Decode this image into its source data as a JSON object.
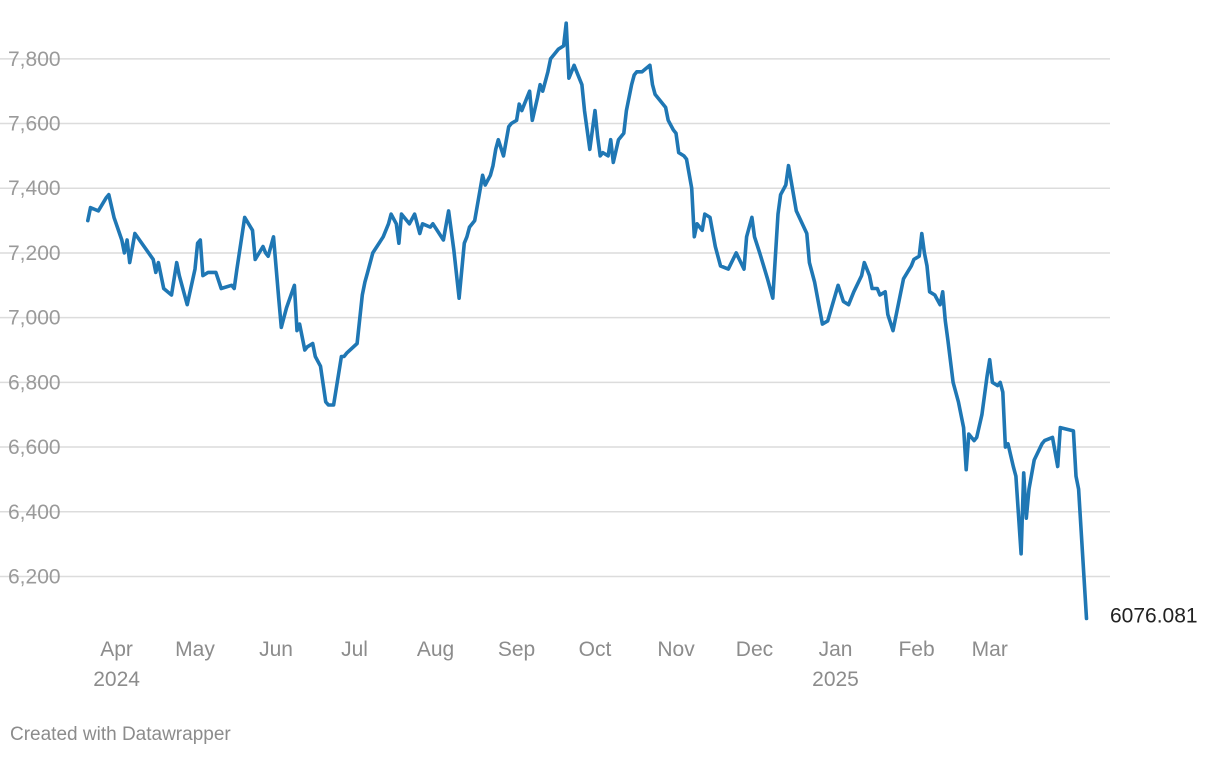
{
  "chart_data": {
    "type": "line",
    "title": "",
    "xlabel": "",
    "ylabel": "",
    "ylim": [
      6050,
      7920
    ],
    "yticks": [
      6200,
      6400,
      6600,
      6800,
      7000,
      7200,
      7400,
      7600,
      7800
    ],
    "ytick_labels": [
      "6,200",
      "6,400",
      "6,600",
      "6,800",
      "7,000",
      "7,200",
      "7,400",
      "7,600",
      "7,800"
    ],
    "xlim": [
      "2024-03-18",
      "2025-04-16"
    ],
    "xticks": [
      {
        "date": "2024-04-01",
        "label": "Apr",
        "sublabel": "2024"
      },
      {
        "date": "2024-05-01",
        "label": "May",
        "sublabel": ""
      },
      {
        "date": "2024-06-01",
        "label": "Jun",
        "sublabel": ""
      },
      {
        "date": "2024-07-01",
        "label": "Jul",
        "sublabel": ""
      },
      {
        "date": "2024-08-01",
        "label": "Aug",
        "sublabel": ""
      },
      {
        "date": "2024-09-01",
        "label": "Sep",
        "sublabel": ""
      },
      {
        "date": "2024-10-01",
        "label": "Oct",
        "sublabel": ""
      },
      {
        "date": "2024-11-01",
        "label": "Nov",
        "sublabel": ""
      },
      {
        "date": "2024-12-01",
        "label": "Dec",
        "sublabel": ""
      },
      {
        "date": "2025-01-01",
        "label": "Jan",
        "sublabel": "2025"
      },
      {
        "date": "2025-02-01",
        "label": "Feb",
        "sublabel": ""
      },
      {
        "date": "2025-03-01",
        "label": "Mar",
        "sublabel": ""
      }
    ],
    "grid": true,
    "line_color": "#1f77b4",
    "end_label": "6076.081",
    "series": [
      {
        "x": [
          "2024-03-21",
          "2024-03-22",
          "2024-03-25",
          "2024-03-28",
          "2024-03-29",
          "2024-03-31",
          "2024-04-03",
          "2024-04-04",
          "2024-04-05",
          "2024-04-06",
          "2024-04-08",
          "2024-04-15",
          "2024-04-16",
          "2024-04-17",
          "2024-04-19",
          "2024-04-22",
          "2024-04-24",
          "2024-04-25",
          "2024-04-28",
          "2024-05-01",
          "2024-05-02",
          "2024-05-03",
          "2024-05-04",
          "2024-05-06",
          "2024-05-09",
          "2024-05-11",
          "2024-05-15",
          "2024-05-16",
          "2024-05-17",
          "2024-05-20",
          "2024-05-23",
          "2024-05-24",
          "2024-05-27",
          "2024-05-28",
          "2024-05-29",
          "2024-05-31",
          "2024-06-02",
          "2024-06-03",
          "2024-06-04",
          "2024-06-05",
          "2024-06-08",
          "2024-06-09",
          "2024-06-10",
          "2024-06-12",
          "2024-06-13",
          "2024-06-15",
          "2024-06-16",
          "2024-06-18",
          "2024-06-20",
          "2024-06-21",
          "2024-06-23",
          "2024-06-26",
          "2024-06-27",
          "2024-06-28",
          "2024-07-02",
          "2024-07-04",
          "2024-07-05",
          "2024-07-06",
          "2024-07-08",
          "2024-07-12",
          "2024-07-14",
          "2024-07-15",
          "2024-07-17",
          "2024-07-18",
          "2024-07-19",
          "2024-07-22",
          "2024-07-24",
          "2024-07-26",
          "2024-07-27",
          "2024-07-30",
          "2024-07-31",
          "2024-08-04",
          "2024-08-06",
          "2024-08-08",
          "2024-08-10",
          "2024-08-12",
          "2024-08-13",
          "2024-08-14",
          "2024-08-16",
          "2024-08-19",
          "2024-08-20",
          "2024-08-22",
          "2024-08-23",
          "2024-08-24",
          "2024-08-25",
          "2024-08-27",
          "2024-08-29",
          "2024-08-30",
          "2024-09-01",
          "2024-09-02",
          "2024-09-03",
          "2024-09-05",
          "2024-09-06",
          "2024-09-07",
          "2024-09-09",
          "2024-09-10",
          "2024-09-11",
          "2024-09-13",
          "2024-09-14",
          "2024-09-16",
          "2024-09-17",
          "2024-09-19",
          "2024-09-20",
          "2024-09-21",
          "2024-09-22",
          "2024-09-23",
          "2024-09-24",
          "2024-09-26",
          "2024-09-27",
          "2024-09-29",
          "2024-10-01",
          "2024-10-02",
          "2024-10-03",
          "2024-10-04",
          "2024-10-06",
          "2024-10-07",
          "2024-10-08",
          "2024-10-10",
          "2024-10-12",
          "2024-10-13",
          "2024-10-15",
          "2024-10-16",
          "2024-10-17",
          "2024-10-19",
          "2024-10-22",
          "2024-10-23",
          "2024-10-24",
          "2024-10-28",
          "2024-10-29",
          "2024-10-31",
          "2024-11-01",
          "2024-11-02",
          "2024-11-04",
          "2024-11-05",
          "2024-11-07",
          "2024-11-08",
          "2024-11-09",
          "2024-11-11",
          "2024-11-12",
          "2024-11-14",
          "2024-11-16",
          "2024-11-18",
          "2024-11-21",
          "2024-11-24",
          "2024-11-27",
          "2024-11-28",
          "2024-11-30",
          "2024-12-01",
          "2024-12-03",
          "2024-12-06",
          "2024-12-08",
          "2024-12-10",
          "2024-12-11",
          "2024-12-13",
          "2024-12-14",
          "2024-12-17",
          "2024-12-21",
          "2024-12-22",
          "2024-12-24",
          "2024-12-27",
          "2024-12-29",
          "2025-01-02",
          "2025-01-04",
          "2025-01-06",
          "2025-01-08",
          "2025-01-11",
          "2025-01-12",
          "2025-01-14",
          "2025-01-15",
          "2025-01-17",
          "2025-01-18",
          "2025-01-20",
          "2025-01-21",
          "2025-01-23",
          "2025-01-27",
          "2025-01-30",
          "2025-01-31",
          "2025-02-02",
          "2025-02-03",
          "2025-02-04",
          "2025-02-05",
          "2025-02-06",
          "2025-02-08",
          "2025-02-10",
          "2025-02-11",
          "2025-02-12",
          "2025-02-13",
          "2025-02-15",
          "2025-02-17",
          "2025-02-19",
          "2025-02-20",
          "2025-02-21",
          "2025-02-23",
          "2025-02-24",
          "2025-02-26",
          "2025-02-28",
          "2025-03-01",
          "2025-03-02",
          "2025-03-04",
          "2025-03-05",
          "2025-03-06",
          "2025-03-07",
          "2025-03-08",
          "2025-03-10",
          "2025-03-11",
          "2025-03-13",
          "2025-03-14",
          "2025-03-15",
          "2025-03-16",
          "2025-03-18",
          "2025-03-21",
          "2025-03-22",
          "2025-03-25",
          "2025-03-27",
          "2025-03-28",
          "2025-04-02",
          "2025-04-03",
          "2025-04-04",
          "2025-04-07"
        ],
        "y": [
          7300,
          7340,
          7330,
          7370,
          7380,
          7310,
          7240,
          7200,
          7240,
          7170,
          7260,
          7180,
          7140,
          7170,
          7090,
          7070,
          7170,
          7130,
          7040,
          7150,
          7230,
          7240,
          7130,
          7140,
          7140,
          7090,
          7100,
          7090,
          7150,
          7310,
          7270,
          7180,
          7220,
          7200,
          7190,
          7250,
          7060,
          6970,
          7000,
          7030,
          7100,
          6960,
          6980,
          6900,
          6910,
          6920,
          6880,
          6850,
          6740,
          6730,
          6730,
          6880,
          6880,
          6890,
          6920,
          7070,
          7110,
          7140,
          7200,
          7250,
          7290,
          7320,
          7290,
          7230,
          7320,
          7290,
          7320,
          7260,
          7290,
          7280,
          7290,
          7240,
          7330,
          7210,
          7060,
          7230,
          7250,
          7280,
          7300,
          7440,
          7410,
          7440,
          7470,
          7520,
          7550,
          7500,
          7590,
          7600,
          7610,
          7660,
          7640,
          7680,
          7700,
          7610,
          7680,
          7720,
          7700,
          7760,
          7800,
          7820,
          7830,
          7840,
          7910,
          7740,
          7760,
          7780,
          7760,
          7720,
          7640,
          7520,
          7640,
          7560,
          7500,
          7510,
          7500,
          7550,
          7480,
          7550,
          7570,
          7640,
          7720,
          7750,
          7760,
          7760,
          7780,
          7720,
          7690,
          7650,
          7610,
          7580,
          7570,
          7510,
          7500,
          7490,
          7400,
          7250,
          7290,
          7270,
          7320,
          7310,
          7220,
          7160,
          7150,
          7200,
          7150,
          7250,
          7310,
          7250,
          7200,
          7120,
          7060,
          7320,
          7380,
          7410,
          7470,
          7330,
          7260,
          7170,
          7110,
          6980,
          6990,
          7100,
          7050,
          7040,
          7080,
          7130,
          7170,
          7130,
          7090,
          7090,
          7070,
          7080,
          7010,
          6960,
          7120,
          7160,
          7180,
          7190,
          7260,
          7200,
          7160,
          7080,
          7070,
          7040,
          7080,
          6990,
          6930,
          6800,
          6740,
          6660,
          6530,
          6640,
          6620,
          6630,
          6700,
          6820,
          6870,
          6800,
          6790,
          6800,
          6770,
          6600,
          6610,
          6540,
          6510,
          6270,
          6520,
          6380,
          6470,
          6560,
          6610,
          6620,
          6630,
          6540,
          6660,
          6650,
          6510,
          6470,
          6070
        ]
      }
    ]
  },
  "footer": {
    "credit": "Created with Datawrapper"
  }
}
